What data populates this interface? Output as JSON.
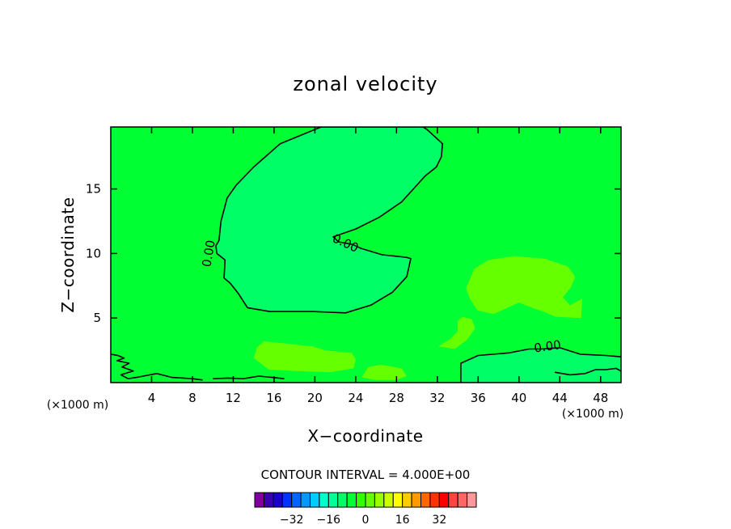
{
  "chart_data": {
    "type": "contour",
    "title": "zonal velocity",
    "xlabel": "X−coordinate",
    "ylabel": "Z−coordinate",
    "x_unit_left": "(×1000 m)",
    "x_unit_right": "(×1000 m)",
    "xlim": [
      0,
      50
    ],
    "ylim": [
      0,
      19.8
    ],
    "x_ticks": [
      4,
      8,
      12,
      16,
      20,
      24,
      28,
      32,
      36,
      40,
      44,
      48
    ],
    "y_ticks": [
      5,
      10,
      15
    ],
    "contour_interval_text": "CONTOUR INTERVAL = 4.000E+00",
    "contour_interval": 4.0,
    "zero_contour_label": "0.00",
    "background_color": "#00ff33",
    "regions": [
      {
        "name": "upper negative lobe",
        "level": "0 to -4",
        "color": "#00ff66",
        "points": [
          [
            11.1,
            8.1
          ],
          [
            11.2,
            9.5
          ],
          [
            10.4,
            10.0
          ],
          [
            10.3,
            10.6
          ],
          [
            10.6,
            11.0
          ],
          [
            10.8,
            12.5
          ],
          [
            11.4,
            14.3
          ],
          [
            12.3,
            15.3
          ],
          [
            14.0,
            16.7
          ],
          [
            16.6,
            18.5
          ],
          [
            20.6,
            19.8
          ],
          [
            30.6,
            19.8
          ],
          [
            31.0,
            19.6
          ],
          [
            32.5,
            18.5
          ],
          [
            32.4,
            17.5
          ],
          [
            31.9,
            16.7
          ],
          [
            30.8,
            16.0
          ],
          [
            28.5,
            14.0
          ],
          [
            26.3,
            12.8
          ],
          [
            24.0,
            11.9
          ],
          [
            21.8,
            11.3
          ],
          [
            22.3,
            10.9
          ],
          [
            23.7,
            10.7
          ],
          [
            24.5,
            10.4
          ],
          [
            26.6,
            9.9
          ],
          [
            29.0,
            9.7
          ],
          [
            29.4,
            9.6
          ],
          [
            29.0,
            8.2
          ],
          [
            27.6,
            7.0
          ],
          [
            25.5,
            6.0
          ],
          [
            23.0,
            5.4
          ],
          [
            19.9,
            5.5
          ],
          [
            15.6,
            5.5
          ],
          [
            13.4,
            5.8
          ],
          [
            12.5,
            6.9
          ],
          [
            11.7,
            7.7
          ]
        ]
      },
      {
        "name": "lower right negative band",
        "level": "0 to -4",
        "color": "#00ff66",
        "points": [
          [
            34.3,
            1.5
          ],
          [
            36.0,
            2.1
          ],
          [
            39.0,
            2.3
          ],
          [
            41.0,
            2.6
          ],
          [
            42.2,
            2.6
          ],
          [
            44.0,
            2.7
          ],
          [
            46.0,
            2.2
          ],
          [
            48.5,
            2.1
          ],
          [
            50.0,
            2.0
          ],
          [
            50.0,
            0.0
          ],
          [
            34.3,
            0.0
          ]
        ]
      },
      {
        "name": "mid-right positive lobe",
        "level": "0 to 4",
        "color": "#66ff00",
        "points": [
          [
            34.8,
            7.3
          ],
          [
            35.6,
            8.8
          ],
          [
            37.0,
            9.5
          ],
          [
            39.5,
            9.8
          ],
          [
            42.5,
            9.6
          ],
          [
            44.8,
            9.0
          ],
          [
            45.5,
            8.2
          ],
          [
            45.1,
            7.4
          ],
          [
            44.3,
            6.6
          ],
          [
            45.0,
            6.0
          ],
          [
            46.2,
            6.5
          ],
          [
            46.1,
            5.0
          ],
          [
            43.6,
            5.1
          ],
          [
            42.4,
            5.5
          ],
          [
            41.6,
            5.7
          ],
          [
            40.0,
            6.2
          ],
          [
            37.5,
            5.3
          ],
          [
            35.9,
            5.6
          ],
          [
            35.2,
            6.5
          ]
        ]
      },
      {
        "name": "small positive patch",
        "level": "0 to 4",
        "color": "#66ff00",
        "points": [
          [
            32.1,
            2.8
          ],
          [
            33.3,
            3.4
          ],
          [
            34.0,
            4.0
          ],
          [
            34.0,
            4.8
          ],
          [
            34.5,
            5.1
          ],
          [
            35.4,
            4.9
          ],
          [
            35.7,
            4.2
          ],
          [
            34.9,
            3.3
          ],
          [
            33.7,
            2.6
          ]
        ]
      },
      {
        "name": "lower positive streak",
        "level": "0 to 4",
        "color": "#66ff00",
        "points": [
          [
            14.0,
            1.9
          ],
          [
            14.3,
            2.7
          ],
          [
            15.0,
            3.2
          ],
          [
            17.5,
            3.0
          ],
          [
            19.8,
            2.8
          ],
          [
            21.0,
            2.5
          ],
          [
            23.6,
            2.3
          ],
          [
            24.0,
            1.8
          ],
          [
            23.8,
            1.1
          ],
          [
            21.5,
            0.8
          ],
          [
            18.0,
            0.9
          ],
          [
            15.5,
            1.0
          ]
        ]
      },
      {
        "name": "small positive patch low",
        "level": "0 to 4",
        "color": "#66ff00",
        "points": [
          [
            24.6,
            0.4
          ],
          [
            25.2,
            1.2
          ],
          [
            26.5,
            1.4
          ],
          [
            28.5,
            1.1
          ],
          [
            29.0,
            0.5
          ],
          [
            28.0,
            0.2
          ],
          [
            26.0,
            0.2
          ]
        ]
      }
    ],
    "contour_lines": [
      {
        "name": "upper zero contour",
        "level": 0,
        "closed": true,
        "region": 0
      },
      {
        "name": "lower right zero contour",
        "level": 0,
        "closed": false,
        "points": [
          [
            34.3,
            0.0
          ],
          [
            34.3,
            1.5
          ],
          [
            36.0,
            2.1
          ],
          [
            39.0,
            2.3
          ],
          [
            41.0,
            2.6
          ],
          [
            42.2,
            2.6
          ],
          [
            44.0,
            2.7
          ],
          [
            46.0,
            2.2
          ],
          [
            48.5,
            2.1
          ],
          [
            50.0,
            2.0
          ]
        ]
      },
      {
        "name": "left boundary wiggle",
        "level": 0,
        "closed": false,
        "points": [
          [
            0.0,
            2.2
          ],
          [
            0.7,
            2.1
          ],
          [
            1.3,
            1.9
          ],
          [
            0.6,
            1.7
          ],
          [
            1.8,
            1.5
          ],
          [
            1.1,
            1.2
          ],
          [
            2.2,
            0.9
          ],
          [
            1.0,
            0.6
          ],
          [
            1.7,
            0.3
          ],
          [
            2.5,
            0.4
          ],
          [
            4.5,
            0.7
          ],
          [
            6.0,
            0.4
          ],
          [
            8.0,
            0.3
          ],
          [
            9.0,
            0.2
          ]
        ]
      },
      {
        "name": "bottom wiggle mid",
        "level": 0,
        "closed": false,
        "points": [
          [
            10.0,
            0.3
          ],
          [
            11.5,
            0.35
          ],
          [
            13.0,
            0.3
          ],
          [
            14.5,
            0.5
          ],
          [
            15.8,
            0.4
          ],
          [
            17.0,
            0.3
          ]
        ]
      },
      {
        "name": "bottom right wiggle",
        "level": 0,
        "closed": false,
        "points": [
          [
            43.5,
            0.8
          ],
          [
            45.0,
            0.6
          ],
          [
            46.5,
            0.7
          ],
          [
            47.5,
            1.0
          ],
          [
            48.5,
            1.0
          ],
          [
            49.5,
            1.1
          ],
          [
            50.0,
            0.9
          ]
        ]
      }
    ],
    "contour_label_positions": [
      [
        9.6,
        10.0
      ],
      [
        23.0,
        10.8
      ],
      [
        42.8,
        2.8
      ]
    ],
    "colorbar": {
      "colors": [
        "#8000a0",
        "#3b00b0",
        "#1a00d0",
        "#0033ff",
        "#0066ff",
        "#0099ff",
        "#00ccff",
        "#00ffcc",
        "#00ff99",
        "#00ff66",
        "#00ff33",
        "#33ff00",
        "#66ff00",
        "#99ff00",
        "#ccff00",
        "#ffff00",
        "#ffcc00",
        "#ff9900",
        "#ff6600",
        "#ff3300",
        "#ff0000",
        "#ff4444",
        "#ff6666",
        "#ff9999"
      ],
      "tick_labels": [
        "−32",
        "−16",
        "0",
        "16",
        "32"
      ],
      "tick_values": [
        -32,
        -16,
        0,
        16,
        32
      ]
    }
  }
}
